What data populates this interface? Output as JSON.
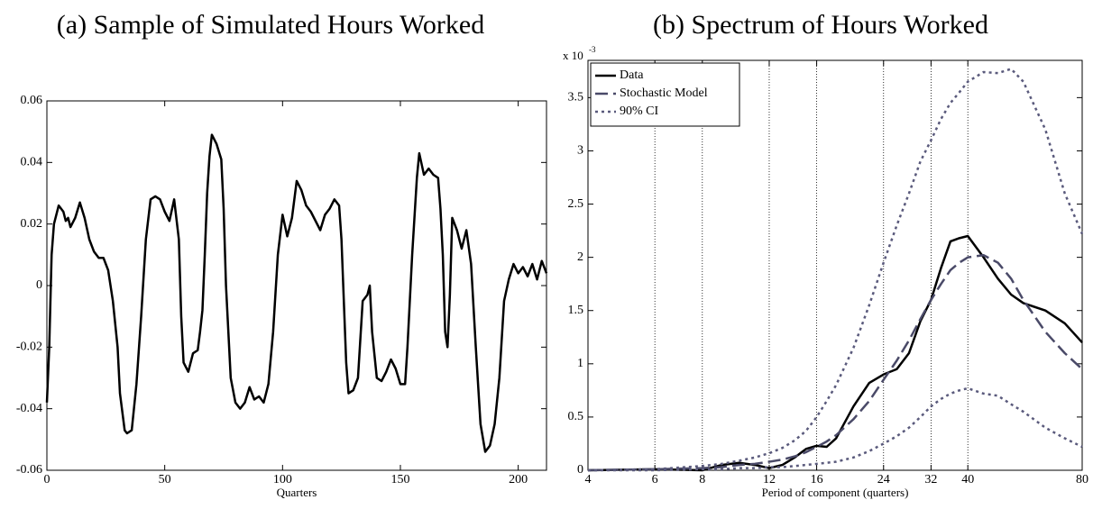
{
  "chart_data": [
    {
      "type": "line",
      "title": "(a) Sample of Simulated Hours Worked",
      "xlabel": "Quarters",
      "xlim": [
        0,
        212
      ],
      "xticks": [
        0,
        50,
        100,
        150,
        200
      ],
      "ylim": [
        -0.06,
        0.06
      ],
      "yticks": [
        -0.06,
        -0.04,
        -0.02,
        0,
        0.02,
        0.04,
        0.06
      ],
      "x": [
        0,
        1,
        2,
        3,
        5,
        7,
        8,
        9,
        10,
        12,
        14,
        16,
        18,
        20,
        22,
        24,
        26,
        28,
        30,
        31,
        33,
        34,
        36,
        38,
        40,
        42,
        44,
        46,
        48,
        50,
        52,
        54,
        56,
        57,
        58,
        60,
        62,
        64,
        65,
        66,
        67,
        68,
        69,
        70,
        72,
        74,
        75,
        76,
        78,
        80,
        82,
        84,
        86,
        88,
        90,
        92,
        94,
        96,
        98,
        100,
        102,
        104,
        106,
        108,
        110,
        112,
        114,
        116,
        118,
        120,
        122,
        124,
        125,
        126,
        127,
        128,
        130,
        132,
        134,
        136,
        137,
        138,
        140,
        142,
        144,
        146,
        148,
        150,
        152,
        153,
        155,
        157,
        158,
        160,
        162,
        164,
        166,
        167,
        168,
        169,
        170,
        171,
        172,
        174,
        176,
        178,
        180,
        182,
        184,
        186,
        188,
        190,
        192,
        194,
        196,
        198,
        200,
        202,
        204,
        206,
        208,
        210,
        212
      ],
      "series": [
        {
          "color": "#000000",
          "dash": "solid",
          "values": [
            -0.038,
            -0.02,
            0.01,
            0.02,
            0.026,
            0.024,
            0.021,
            0.022,
            0.019,
            0.022,
            0.027,
            0.022,
            0.015,
            0.011,
            0.009,
            0.009,
            0.005,
            -0.005,
            -0.02,
            -0.035,
            -0.047,
            -0.048,
            -0.047,
            -0.032,
            -0.01,
            0.015,
            0.028,
            0.029,
            0.028,
            0.024,
            0.021,
            0.028,
            0.015,
            -0.01,
            -0.025,
            -0.028,
            -0.022,
            -0.021,
            -0.015,
            -0.008,
            0.01,
            0.03,
            0.042,
            0.049,
            0.046,
            0.041,
            0.025,
            0.0,
            -0.03,
            -0.038,
            -0.04,
            -0.038,
            -0.033,
            -0.037,
            -0.036,
            -0.038,
            -0.032,
            -0.015,
            0.01,
            0.023,
            0.016,
            0.022,
            0.034,
            0.031,
            0.026,
            0.024,
            0.021,
            0.018,
            0.023,
            0.025,
            0.028,
            0.026,
            0.015,
            -0.005,
            -0.025,
            -0.035,
            -0.034,
            -0.03,
            -0.005,
            -0.003,
            0.0,
            -0.015,
            -0.03,
            -0.031,
            -0.028,
            -0.024,
            -0.027,
            -0.032,
            -0.032,
            -0.02,
            0.01,
            0.035,
            0.043,
            0.036,
            0.038,
            0.036,
            0.035,
            0.025,
            0.01,
            -0.015,
            -0.02,
            -0.003,
            0.022,
            0.018,
            0.012,
            0.018,
            0.007,
            -0.02,
            -0.045,
            -0.054,
            -0.052,
            -0.045,
            -0.03,
            -0.005,
            0.002,
            0.007,
            0.004,
            0.006,
            0.003,
            0.007,
            0.002,
            0.008,
            0.004
          ]
        }
      ]
    },
    {
      "type": "line",
      "title": "(b) Spectrum of Hours Worked",
      "xlabel": "Period of component (quarters)",
      "xscale": "log",
      "grid": "x",
      "legend": "upper left",
      "y_multiplier": "x 10",
      "y_multiplier_exponent": "-3",
      "xlim": [
        4,
        80
      ],
      "xticks": [
        4,
        6,
        8,
        12,
        16,
        24,
        32,
        40,
        80
      ],
      "ylim": [
        0,
        3.85
      ],
      "yticks": [
        0,
        0.5,
        1,
        1.5,
        2,
        2.5,
        3,
        3.5
      ],
      "x": [
        4,
        6,
        8,
        9,
        10,
        11,
        12,
        13,
        14,
        15,
        16,
        17,
        18,
        20,
        22,
        24,
        26,
        28,
        30,
        32,
        34,
        36,
        38,
        40,
        44,
        48,
        52,
        56,
        64,
        72,
        80
      ],
      "series": [
        {
          "name": "Data",
          "color": "#000000",
          "dash": "solid",
          "values": [
            0,
            0.01,
            0.0,
            0.05,
            0.07,
            0.05,
            0.02,
            0.05,
            0.12,
            0.2,
            0.23,
            0.22,
            0.3,
            0.6,
            0.82,
            0.9,
            0.95,
            1.1,
            1.4,
            1.6,
            1.9,
            2.15,
            2.18,
            2.2,
            2.0,
            1.8,
            1.65,
            1.57,
            1.5,
            1.38,
            1.2
          ]
        },
        {
          "name": "Stochastic Model",
          "color": "#4a4a68",
          "dash": "dashed",
          "values": [
            0,
            0.01,
            0.02,
            0.03,
            0.05,
            0.06,
            0.08,
            0.1,
            0.13,
            0.17,
            0.22,
            0.27,
            0.33,
            0.48,
            0.65,
            0.85,
            1.03,
            1.22,
            1.42,
            1.6,
            1.75,
            1.88,
            1.95,
            2.0,
            2.02,
            1.95,
            1.8,
            1.6,
            1.3,
            1.1,
            0.95
          ]
        },
        {
          "name": "90% CI",
          "color": "#5a5a7c",
          "dash": "dotted",
          "values": [
            0,
            0.01,
            0.04,
            0.06,
            0.09,
            0.12,
            0.16,
            0.21,
            0.28,
            0.37,
            0.5,
            0.65,
            0.8,
            1.15,
            1.55,
            1.95,
            2.3,
            2.6,
            2.9,
            3.1,
            3.3,
            3.45,
            3.55,
            3.65,
            3.74,
            3.73,
            3.77,
            3.65,
            3.2,
            2.6,
            2.22
          ],
          "lower": [
            0,
            0.0,
            0.01,
            0.01,
            0.02,
            0.02,
            0.03,
            0.03,
            0.04,
            0.05,
            0.06,
            0.07,
            0.08,
            0.12,
            0.18,
            0.25,
            0.32,
            0.4,
            0.5,
            0.6,
            0.67,
            0.72,
            0.75,
            0.77,
            0.72,
            0.7,
            0.62,
            0.55,
            0.4,
            0.3,
            0.22
          ]
        }
      ]
    }
  ]
}
